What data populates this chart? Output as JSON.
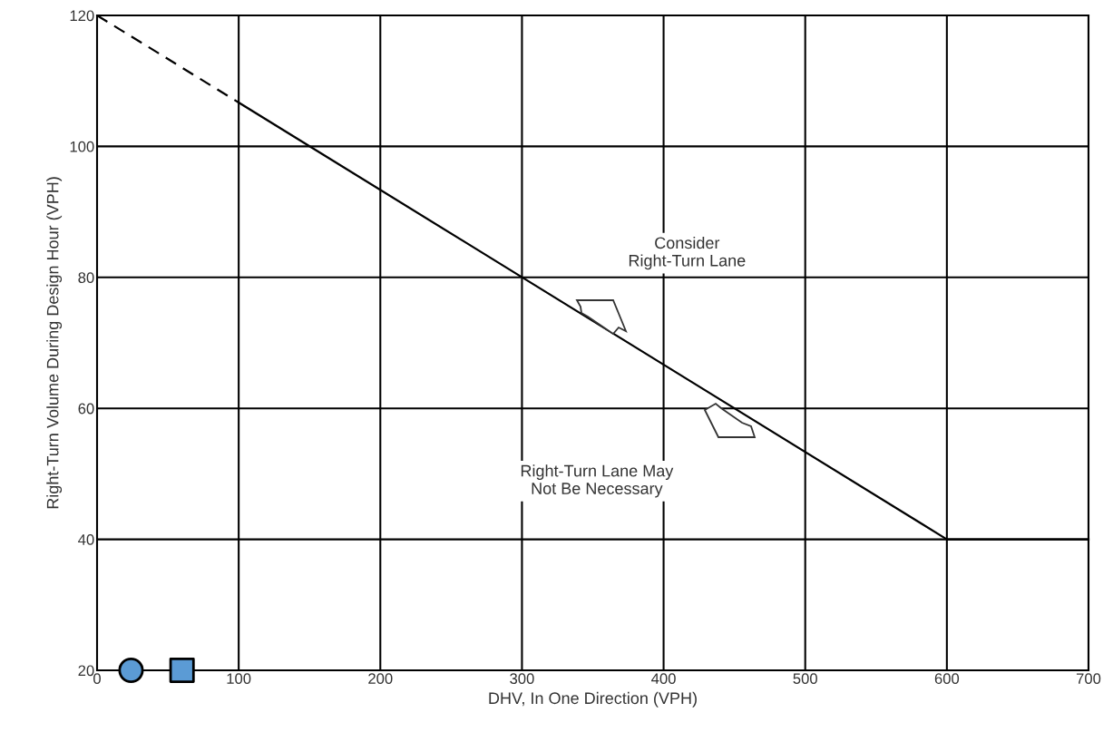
{
  "chart_data": {
    "type": "line",
    "xlabel": "DHV, In One Direction (VPH)",
    "ylabel": "Right-Turn Volume During Design Hour (VPH)",
    "xlim": [
      0,
      700
    ],
    "ylim": [
      20,
      120
    ],
    "xticks": [
      0,
      100,
      200,
      300,
      400,
      500,
      600,
      700
    ],
    "yticks": [
      20,
      40,
      60,
      80,
      100,
      120
    ],
    "grid": true,
    "series": [
      {
        "color": "#000000",
        "line_style": "dashed",
        "x": [
          0,
          100
        ],
        "values": [
          120,
          106.7
        ]
      },
      {
        "color": "#000000",
        "line_style": "solid",
        "x": [
          100,
          600,
          700
        ],
        "values": [
          106.7,
          40,
          40
        ]
      },
      {
        "type": "scatter",
        "marker": "circle",
        "color": "#5b9bd5",
        "x": [
          24
        ],
        "values": [
          20
        ]
      },
      {
        "type": "scatter",
        "marker": "square",
        "color": "#5b9bd5",
        "x": [
          60
        ],
        "values": [
          20
        ]
      }
    ],
    "annotations": [
      "Consider\nRight-Turn Lane",
      "Right-Turn Lane May\nNot Be Necessary"
    ]
  }
}
